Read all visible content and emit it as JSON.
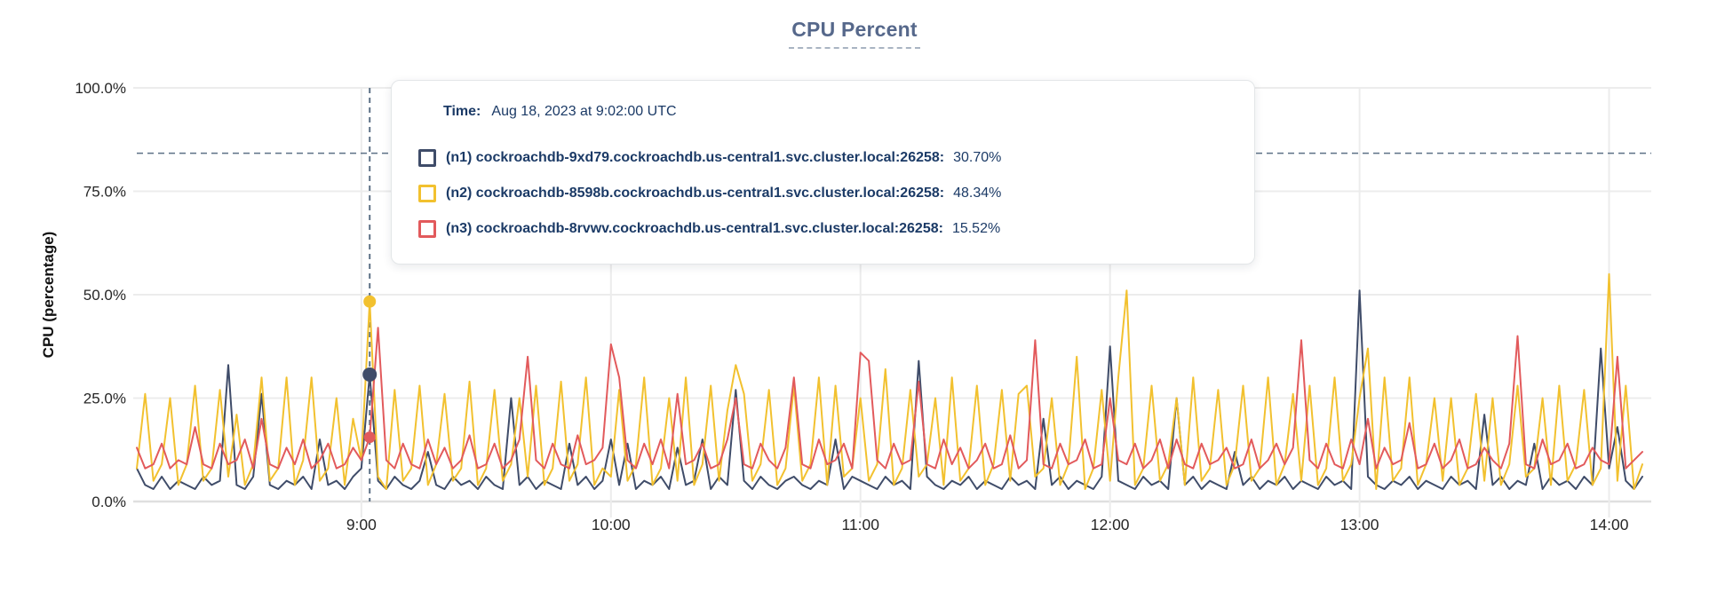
{
  "title": "CPU Percent",
  "axes": {
    "ylabel": "CPU (percentage)"
  },
  "tooltip": {
    "time_label": "Time:",
    "time_value": "Aug 18, 2023 at 9:02:00 UTC",
    "rows": [
      {
        "label": "(n1) cockroachdb-9xd79.cockroachdb.us-central1.svc.cluster.local:26258:",
        "value": "30.70%",
        "color": "#3F4C69"
      },
      {
        "label": "(n2) cockroachdb-8598b.cockroachdb.us-central1.svc.cluster.local:26258:",
        "value": "48.34%",
        "color": "#F2C12F"
      },
      {
        "label": "(n3) cockroachdb-8rvwv.cockroachdb.us-central1.svc.cluster.local:26258:",
        "value": "15.52%",
        "color": "#E25A5C"
      }
    ]
  },
  "chart_data": {
    "type": "line",
    "title": "CPU Percent",
    "xlabel": "",
    "ylabel": "CPU (percentage)",
    "ylim": [
      0,
      100
    ],
    "grid": true,
    "y_ticks": [
      {
        "label": "100.0%",
        "value": 100
      },
      {
        "label": "75.0%",
        "value": 75
      },
      {
        "label": "50.0%",
        "value": 50
      },
      {
        "label": "25.0%",
        "value": 25
      },
      {
        "label": "0.0%",
        "value": 0
      }
    ],
    "x_ticks": [
      {
        "label": "9:00",
        "minute": 540
      },
      {
        "label": "10:00",
        "minute": 600
      },
      {
        "label": "11:00",
        "minute": 660
      },
      {
        "label": "12:00",
        "minute": 720
      },
      {
        "label": "13:00",
        "minute": 780
      },
      {
        "label": "14:00",
        "minute": 840
      }
    ],
    "time_start_min": 486,
    "time_step_min": 2,
    "annotation_line_pct": 84.2,
    "hover": {
      "time_min": 542,
      "time_text": "Aug 18, 2023 at 9:02:00 UTC",
      "points": [
        {
          "series": "n1",
          "value": 30.7,
          "radius": 8
        },
        {
          "series": "n2",
          "value": 48.34,
          "radius": 7
        },
        {
          "series": "n3",
          "value": 15.52,
          "radius": 6.5
        }
      ]
    },
    "series": [
      {
        "name": "n1",
        "color": "#3F4C69",
        "values": [
          8,
          4,
          3,
          6,
          3,
          5,
          4,
          3,
          6,
          4,
          5,
          33,
          4,
          3,
          6,
          26,
          4,
          3,
          5,
          4,
          6,
          3,
          15,
          4,
          5,
          3,
          6,
          8,
          30.7,
          5,
          3,
          6,
          4,
          3,
          5,
          12,
          4,
          3,
          6,
          4,
          5,
          3,
          6,
          4,
          3,
          25,
          4,
          6,
          3,
          5,
          4,
          3,
          14,
          4,
          6,
          3,
          5,
          15,
          4,
          14,
          3,
          5,
          4,
          6,
          3,
          13,
          4,
          5,
          15,
          3,
          6,
          4,
          27,
          5,
          3,
          6,
          4,
          3,
          5,
          6,
          4,
          3,
          5,
          4,
          15,
          3,
          6,
          5,
          4,
          3,
          6,
          4,
          5,
          3,
          34,
          6,
          4,
          3,
          5,
          4,
          6,
          3,
          5,
          4,
          3,
          6,
          4,
          5,
          3,
          20,
          4,
          6,
          3,
          5,
          4,
          3,
          6,
          37.5,
          5,
          4,
          3,
          6,
          4,
          5,
          3,
          25,
          4,
          6,
          3,
          5,
          4,
          3,
          12,
          4,
          6,
          3,
          5,
          4,
          6,
          3,
          5,
          4,
          3,
          6,
          4,
          5,
          3,
          51,
          6,
          4,
          3,
          5,
          4,
          6,
          3,
          5,
          4,
          3,
          6,
          4,
          5,
          3,
          21,
          4,
          6,
          3,
          5,
          4,
          14,
          3,
          6,
          4,
          5,
          3,
          6,
          4,
          37,
          8,
          18,
          5,
          3,
          6
        ]
      },
      {
        "name": "n2",
        "color": "#F2C12F",
        "values": [
          8,
          26,
          5,
          9,
          25,
          4,
          9,
          28,
          5,
          8,
          27,
          6,
          21,
          4,
          9,
          30,
          5,
          8,
          30,
          4,
          10,
          30,
          5,
          8,
          25,
          4,
          20,
          10,
          48.3,
          6,
          3,
          27,
          5,
          8,
          28,
          4,
          9,
          26,
          5,
          8,
          29,
          4,
          8,
          27,
          5,
          9,
          25,
          6,
          28,
          4,
          8,
          29,
          5,
          9,
          30,
          4,
          8,
          6,
          27,
          5,
          9,
          30,
          4,
          8,
          25,
          5,
          30,
          4,
          9,
          28,
          5,
          22,
          33,
          26,
          5,
          9,
          27,
          4,
          8,
          28,
          5,
          9,
          30,
          4,
          28,
          6,
          8,
          25,
          5,
          9,
          32,
          4,
          8,
          27,
          6,
          9,
          25,
          4,
          30,
          5,
          8,
          28,
          4,
          9,
          27,
          5,
          26,
          28,
          6,
          8,
          25,
          4,
          9,
          35,
          3,
          8,
          27,
          5,
          30,
          51,
          4,
          8,
          28,
          5,
          9,
          25,
          4,
          30,
          5,
          8,
          27,
          4,
          9,
          28,
          5,
          8,
          30,
          4,
          9,
          26,
          5,
          28,
          4,
          8,
          30,
          5,
          9,
          25,
          37,
          3,
          30,
          5,
          8,
          30,
          4,
          9,
          25,
          5,
          25,
          4,
          8,
          26,
          5,
          25,
          4,
          9,
          28,
          6,
          8,
          25,
          4,
          28,
          5,
          9,
          27,
          4,
          8,
          55,
          5,
          28,
          3,
          9
        ]
      },
      {
        "name": "n3",
        "color": "#E25A5C",
        "values": [
          13,
          8,
          9,
          14,
          8,
          10,
          9,
          18,
          9,
          8,
          14,
          9,
          10,
          15,
          8,
          20,
          9,
          8,
          13,
          9,
          15,
          8,
          10,
          14,
          8,
          9,
          13,
          10,
          15.5,
          42,
          10,
          8,
          14,
          9,
          8,
          15,
          9,
          13,
          8,
          10,
          16,
          8,
          9,
          14,
          8,
          10,
          15,
          35,
          10,
          8,
          14,
          9,
          8,
          16,
          9,
          10,
          13,
          38,
          30,
          10,
          8,
          14,
          9,
          15,
          8,
          26,
          9,
          10,
          14,
          8,
          9,
          15,
          25,
          9,
          8,
          14,
          10,
          8,
          13,
          30,
          9,
          8,
          15,
          9,
          10,
          14,
          8,
          36,
          34,
          10,
          8,
          14,
          9,
          10,
          29,
          9,
          8,
          15,
          9,
          13,
          8,
          10,
          14,
          8,
          9,
          16,
          8,
          10,
          39,
          9,
          8,
          14,
          9,
          10,
          15,
          8,
          9,
          25,
          10,
          9,
          14,
          8,
          10,
          15,
          8,
          15,
          9,
          8,
          14,
          9,
          10,
          13,
          8,
          9,
          15,
          8,
          10,
          14,
          9,
          13,
          39,
          10,
          8,
          14,
          9,
          8,
          15,
          9,
          20,
          8,
          13,
          9,
          10,
          19,
          8,
          9,
          14,
          8,
          10,
          15,
          8,
          9,
          13,
          10,
          8,
          14,
          40,
          9,
          8,
          15,
          9,
          10,
          14,
          8,
          9,
          13,
          10,
          9,
          35,
          8,
          10,
          12
        ]
      }
    ],
    "colors": {
      "grid": "#ECECEC",
      "baseline": "#DFDFDF",
      "dashed_guides": "#5D7186",
      "tick_text": "#262626"
    }
  }
}
